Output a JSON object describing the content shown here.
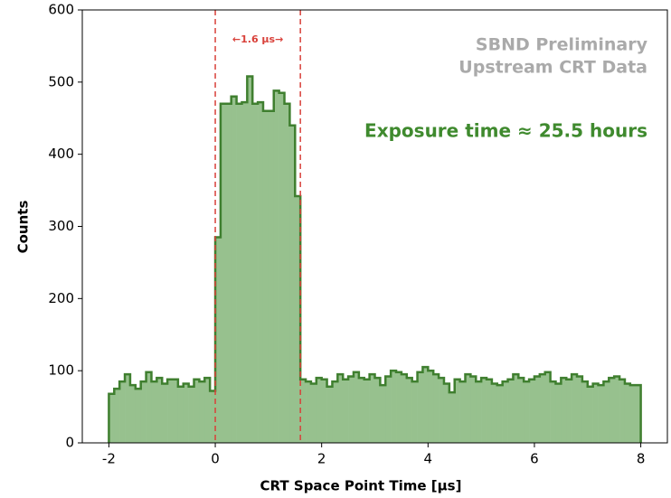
{
  "chart_data": {
    "type": "histogram",
    "xlabel": "CRT Space Point Time [µs]",
    "ylabel": "Counts",
    "bins": [
      -2.0,
      -1.9,
      -1.8,
      -1.7,
      -1.6,
      -1.5,
      -1.4,
      -1.3,
      -1.2,
      -1.1,
      -1.0,
      -0.9,
      -0.8,
      -0.7,
      -0.6,
      -0.5,
      -0.4,
      -0.3,
      -0.2,
      -0.1,
      0.0,
      0.1,
      0.2,
      0.3,
      0.4,
      0.5,
      0.6,
      0.7,
      0.8,
      0.9,
      1.0,
      1.1,
      1.2,
      1.3,
      1.4,
      1.5,
      1.6,
      1.7,
      1.8,
      1.9,
      2.0,
      2.1,
      2.2,
      2.3,
      2.4,
      2.5,
      2.6,
      2.7,
      2.8,
      2.9,
      3.0,
      3.1,
      3.2,
      3.3,
      3.4,
      3.5,
      3.6,
      3.7,
      3.8,
      3.9,
      4.0,
      4.1,
      4.2,
      4.3,
      4.4,
      4.5,
      4.6,
      4.7,
      4.8,
      4.9,
      5.0,
      5.1,
      5.2,
      5.3,
      5.4,
      5.5,
      5.6,
      5.7,
      5.8,
      5.9,
      6.0,
      6.1,
      6.2,
      6.3,
      6.4,
      6.5,
      6.6,
      6.7,
      6.8,
      6.9,
      7.0,
      7.1,
      7.2,
      7.3,
      7.4,
      7.5,
      7.6,
      7.7,
      7.8,
      7.9,
      8.0
    ],
    "values": [
      68,
      75,
      85,
      95,
      80,
      75,
      85,
      98,
      85,
      90,
      82,
      88,
      88,
      78,
      82,
      78,
      88,
      85,
      90,
      72,
      285,
      470,
      470,
      480,
      470,
      472,
      508,
      470,
      472,
      460,
      460,
      488,
      485,
      470,
      440,
      342,
      88,
      85,
      82,
      90,
      88,
      78,
      85,
      95,
      88,
      92,
      98,
      90,
      88,
      95,
      90,
      80,
      92,
      100,
      98,
      95,
      90,
      85,
      98,
      105,
      100,
      95,
      90,
      82,
      70,
      88,
      85,
      95,
      92,
      85,
      90,
      88,
      82,
      80,
      85,
      88,
      95,
      90,
      85,
      88,
      92,
      95,
      98,
      85,
      82,
      90,
      88,
      95,
      92,
      85,
      78,
      82,
      80,
      85,
      90,
      92,
      88,
      82,
      80,
      80
    ],
    "color": "#97c18e",
    "edgecolor": "#3f7f2f",
    "xlim": [
      -2.5,
      8.5
    ],
    "ylim": [
      0,
      600
    ],
    "xticks": [
      -2,
      0,
      2,
      4,
      6,
      8
    ],
    "yticks": [
      0,
      100,
      200,
      300,
      400,
      500,
      600
    ],
    "vlines": [
      0,
      1.6
    ],
    "vline_color": "#d9413a",
    "annotations": [
      {
        "text": "←1.6 µs→",
        "color": "#d9413a"
      },
      {
        "text": "SBND Preliminary",
        "color": "#aaaaaa"
      },
      {
        "text": "Upstream CRT Data",
        "color": "#aaaaaa"
      },
      {
        "text": "Exposure time ≈ 25.5 hours",
        "color": "#3f8a2e"
      }
    ]
  }
}
